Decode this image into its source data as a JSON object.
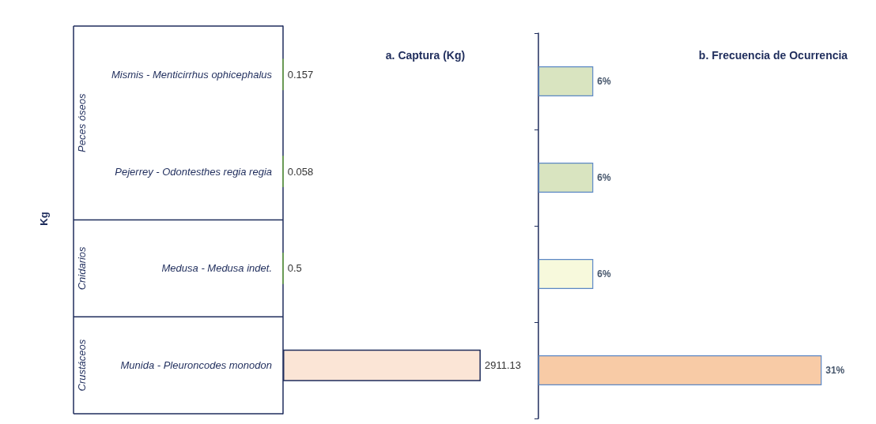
{
  "chart_data": [
    {
      "type": "bar",
      "orientation": "horizontal",
      "title": "a. Captura (Kg)",
      "ylabel": "Kg",
      "categories": [
        "Mismis - Menticirrhus ophicephalus",
        "Pejerrey - Odontesthes regia regia",
        "Medusa - Medusa indet.",
        "Munida - Pleuroncodes monodon"
      ],
      "values": [
        0.157,
        0.058,
        0.5,
        2911.13
      ],
      "colors": [
        "#70ad47",
        "#70ad47",
        "#70ad47",
        "#fbe5d6"
      ],
      "data_labels": true,
      "annotations": [
        "Peces óseos",
        "Cnidarios",
        "Crustáceos"
      ]
    },
    {
      "type": "bar",
      "orientation": "horizontal",
      "title": "b. Frecuencia de Ocurrencia",
      "categories": [
        null,
        null,
        null,
        null
      ],
      "values": [
        6,
        6,
        6,
        31
      ],
      "colors": [
        "#d9e4c0",
        "#d9e4c0",
        "#f7f9dc",
        "#f8cba6"
      ],
      "value_labels": [
        "6%",
        "6%",
        "6%",
        "31%"
      ]
    }
  ]
}
